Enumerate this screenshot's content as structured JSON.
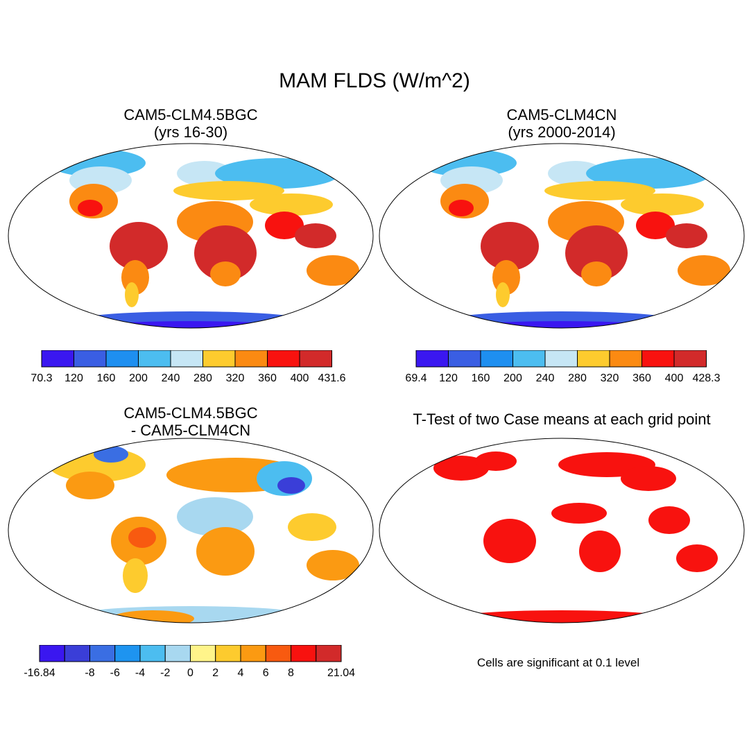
{
  "figure": {
    "title": "MAM FLDS (W/m^2)",
    "note": "Cells are significant at 0.1 level"
  },
  "panels": [
    {
      "title_line1": "CAM5-CLM4.5BGC",
      "title_line2": "(yrs 16-30)"
    },
    {
      "title_line1": "CAM5-CLM4CN",
      "title_line2": "(yrs 2000-2014)"
    },
    {
      "title_line1": "CAM5-CLM4.5BGC",
      "title_line2": "- CAM5-CLM4CN"
    },
    {
      "title_line1": "T-Test of two Case means at each grid point",
      "title_line2": ""
    }
  ],
  "colorbars": {
    "abs_colors": [
      "#3a17f0",
      "#3a5ee3",
      "#1e8ff0",
      "#4cbdf0",
      "#c6e6f5",
      "#fdcb2e",
      "#fb8a12",
      "#f8120f",
      "#d22a2a"
    ],
    "cb1_labels": [
      "70.3",
      "120",
      "160",
      "200",
      "240",
      "280",
      "320",
      "360",
      "400",
      "431.6"
    ],
    "cb2_labels": [
      "69.4",
      "120",
      "160",
      "200",
      "240",
      "280",
      "320",
      "360",
      "400",
      "428.3"
    ],
    "diff_colors": [
      "#3a17f0",
      "#3a3ed8",
      "#3a6ee3",
      "#1e94f0",
      "#4cbdf0",
      "#a8d8f0",
      "#fff48a",
      "#fdcb2e",
      "#fb9a12",
      "#f85a10",
      "#f8120f",
      "#d22a2a"
    ],
    "cb3_labels": [
      "-16.84",
      "",
      "-8",
      "-6",
      "-4",
      "-2",
      "0",
      "2",
      "4",
      "6",
      "8",
      "",
      "21.04"
    ]
  },
  "chart_data": [
    {
      "type": "heatmap",
      "title": "CAM5-CLM4.5BGC (yrs 16-30)",
      "units": "W/m^2",
      "range": [
        70.3,
        431.6
      ],
      "levels": [
        120,
        160,
        200,
        240,
        280,
        320,
        360,
        400
      ]
    },
    {
      "type": "heatmap",
      "title": "CAM5-CLM4CN (yrs 2000-2014)",
      "units": "W/m^2",
      "range": [
        69.4,
        428.3
      ],
      "levels": [
        120,
        160,
        200,
        240,
        280,
        320,
        360,
        400
      ]
    },
    {
      "type": "heatmap",
      "title": "CAM5-CLM4.5BGC - CAM5-CLM4CN",
      "units": "W/m^2",
      "range": [
        -16.84,
        21.04
      ],
      "levels": [
        -8,
        -6,
        -4,
        -2,
        0,
        2,
        4,
        6,
        8
      ]
    },
    {
      "type": "heatmap",
      "title": "T-Test of two Case means at each grid point",
      "significance_level": 0.1
    }
  ]
}
